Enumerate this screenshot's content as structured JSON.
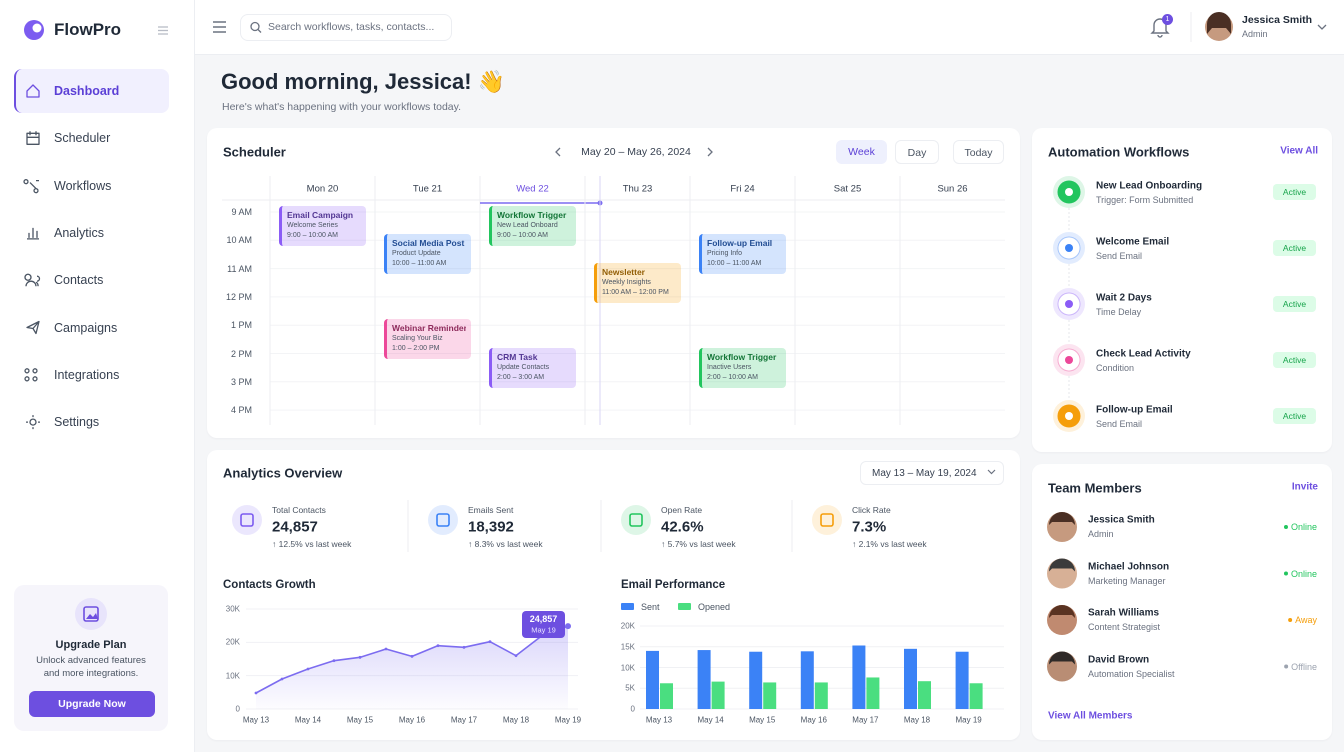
{
  "sidebar": {
    "brand": "FlowPro",
    "nav": [
      "Dashboard",
      "Scheduler",
      "Workflows",
      "Analytics",
      "Contacts",
      "Campaigns",
      "Integrations",
      "Settings"
    ],
    "upgrade": {
      "title": "Upgrade Plan",
      "text": "Unlock advanced features and more integrations.",
      "button": "Upgrade Now"
    }
  },
  "header": {
    "search_placeholder": "Search workflows, tasks, contacts...",
    "notifications": 1,
    "user": {
      "name": "Jessica Smith",
      "role": "Admin"
    }
  },
  "greeting": {
    "title": "Good morning, Jessica! 👋",
    "subtitle": "Here's what's happening with your workflows today."
  },
  "scheduler": {
    "title": "Scheduler",
    "range": "May 20 – May 26, 2024",
    "views": [
      "Week",
      "Day",
      "Today"
    ],
    "hours": [
      "9 AM",
      "10 AM",
      "11 AM",
      "12 PM",
      "1 PM",
      "2 PM",
      "3 PM",
      "4 PM"
    ],
    "days": [
      {
        "label": "Mon 20",
        "events": [
          {
            "title": "Email Campaign",
            "subtitle": "Welcome Series",
            "time": "9:00 – 10:00 AM",
            "color": "#8b5cf6"
          }
        ]
      },
      {
        "label": "Tue 21",
        "events": [
          {
            "title": "Social Media Post",
            "subtitle": "Product Update",
            "time": "10:00 – 11:00 AM",
            "color": "#3b82f6"
          },
          {
            "title": "Webinar Reminder",
            "subtitle": "Scaling Your Biz",
            "time": "1:00 – 2:00 PM",
            "color": "#ec4899"
          }
        ]
      },
      {
        "label": "Wed 22",
        "events": [
          {
            "title": "Workflow Trigger",
            "subtitle": "New Lead Onboard",
            "time": "9:00 – 10:00 AM",
            "color": "#22c55e"
          },
          {
            "title": "CRM Task",
            "subtitle": "Update Contacts",
            "time": "2:00 – 3:00 AM",
            "color": "#8b5cf6"
          }
        ]
      },
      {
        "label": "Thu 23",
        "events": [
          {
            "title": "Newsletter",
            "subtitle": "Weekly Insights",
            "time": "11:00 AM – 12:00 PM",
            "color": "#f59e0b"
          }
        ]
      },
      {
        "label": "Fri 24",
        "events": [
          {
            "title": "Follow-up Email",
            "subtitle": "Pricing Info",
            "time": "10:00 – 11:00 AM",
            "color": "#3b82f6"
          },
          {
            "title": "Workflow Trigger",
            "subtitle": "Inactive Users",
            "time": "2:00 – 10:00 AM",
            "color": "#22c55e"
          }
        ]
      },
      {
        "label": "Sat 25",
        "events": []
      },
      {
        "label": "Sun 26",
        "events": []
      }
    ]
  },
  "automation": {
    "title": "Automation Workflows",
    "link": "View All",
    "items": [
      {
        "name": "New Lead Onboarding",
        "subtitle": "Trigger: Form Submitted",
        "status": "Active",
        "color": "#22c55e"
      },
      {
        "name": "Welcome Email",
        "subtitle": "Send Email",
        "status": "Active",
        "color": "#3b82f6"
      },
      {
        "name": "Wait 2 Days",
        "subtitle": "Time Delay",
        "status": "Active",
        "color": "#8b5cf6"
      },
      {
        "name": "Check Lead Activity",
        "subtitle": "Condition",
        "status": "Active",
        "color": "#ec4899"
      },
      {
        "name": "Follow-up Email",
        "subtitle": "Send Email",
        "status": "Active",
        "color": "#f59e0b"
      }
    ]
  },
  "team": {
    "title": "Team Members",
    "link": "Invite",
    "members": [
      {
        "name": "Jessica Smith",
        "role": "Admin",
        "status": "Online",
        "color": "#22c55e"
      },
      {
        "name": "Michael Johnson",
        "role": "Marketing Manager",
        "status": "Online",
        "color": "#22c55e"
      },
      {
        "name": "Sarah Williams",
        "role": "Content Strategist",
        "status": "Away",
        "color": "#f59e0b"
      },
      {
        "name": "David Brown",
        "role": "Automation Specialist",
        "status": "Offline",
        "color": "#9ca3af"
      }
    ],
    "footer": "View All Members"
  },
  "analytics": {
    "title": "Analytics Overview",
    "range": "May 13 – May 19, 2024",
    "kpis": [
      {
        "label": "Total Contacts",
        "value": "24,857",
        "change": "↑ 12.5% vs last week",
        "color": "#7c5cf0"
      },
      {
        "label": "Emails Sent",
        "value": "18,392",
        "change": "↑ 8.3% vs last week",
        "color": "#3b82f6"
      },
      {
        "label": "Open Rate",
        "value": "42.6%",
        "change": "↑ 5.7% vs last week",
        "color": "#22c55e"
      },
      {
        "label": "Click Rate",
        "value": "7.3%",
        "change": "↑ 2.1% vs last week",
        "color": "#f59e0b"
      }
    ]
  },
  "chart_data": [
    {
      "type": "line",
      "title": "Contacts Growth",
      "categories": [
        "May 13",
        null,
        "May 14",
        null,
        "May 15",
        null,
        "May 16",
        null,
        "May 17",
        null,
        "May 18",
        null,
        "May 19"
      ],
      "values": [
        4800,
        9000,
        12000,
        14500,
        15500,
        18000,
        15800,
        19000,
        18500,
        20200,
        16000,
        22000,
        24857
      ],
      "value_labels": [
        null,
        null,
        null,
        null,
        null,
        null,
        null,
        null,
        null,
        null,
        null,
        null,
        "24,857"
      ],
      "color": "#7c6cf0",
      "ylim": [
        0,
        30000
      ],
      "yticks": [
        0,
        {
          "value": 10000,
          "label": "10K"
        },
        {
          "value": 20000,
          "label": "20K"
        },
        {
          "value": 30000,
          "label": "30K"
        }
      ],
      "grid": true
    },
    {
      "type": "bar",
      "title": "Email Performance",
      "categories": [
        "May 13",
        "May 14",
        "May 15",
        "May 16",
        "May 17",
        "May 18",
        "May 19"
      ],
      "series": [
        {
          "name": "Sent",
          "color": "#3b82f6",
          "values": [
            14000,
            14200,
            13800,
            13900,
            15300,
            14500,
            13800
          ]
        },
        {
          "name": "Opened",
          "color": "#4ade80",
          "values": [
            6200,
            6600,
            6400,
            6400,
            7600,
            6700,
            6200
          ]
        }
      ],
      "ylim": [
        0,
        20000
      ],
      "yticks": [
        0,
        {
          "value": 5000,
          "label": "5K"
        },
        {
          "value": 10000,
          "label": "10K"
        },
        {
          "value": 15000,
          "label": "15K"
        },
        {
          "value": 20000,
          "label": "20K"
        }
      ],
      "grid": true,
      "legend": "top-left"
    }
  ]
}
